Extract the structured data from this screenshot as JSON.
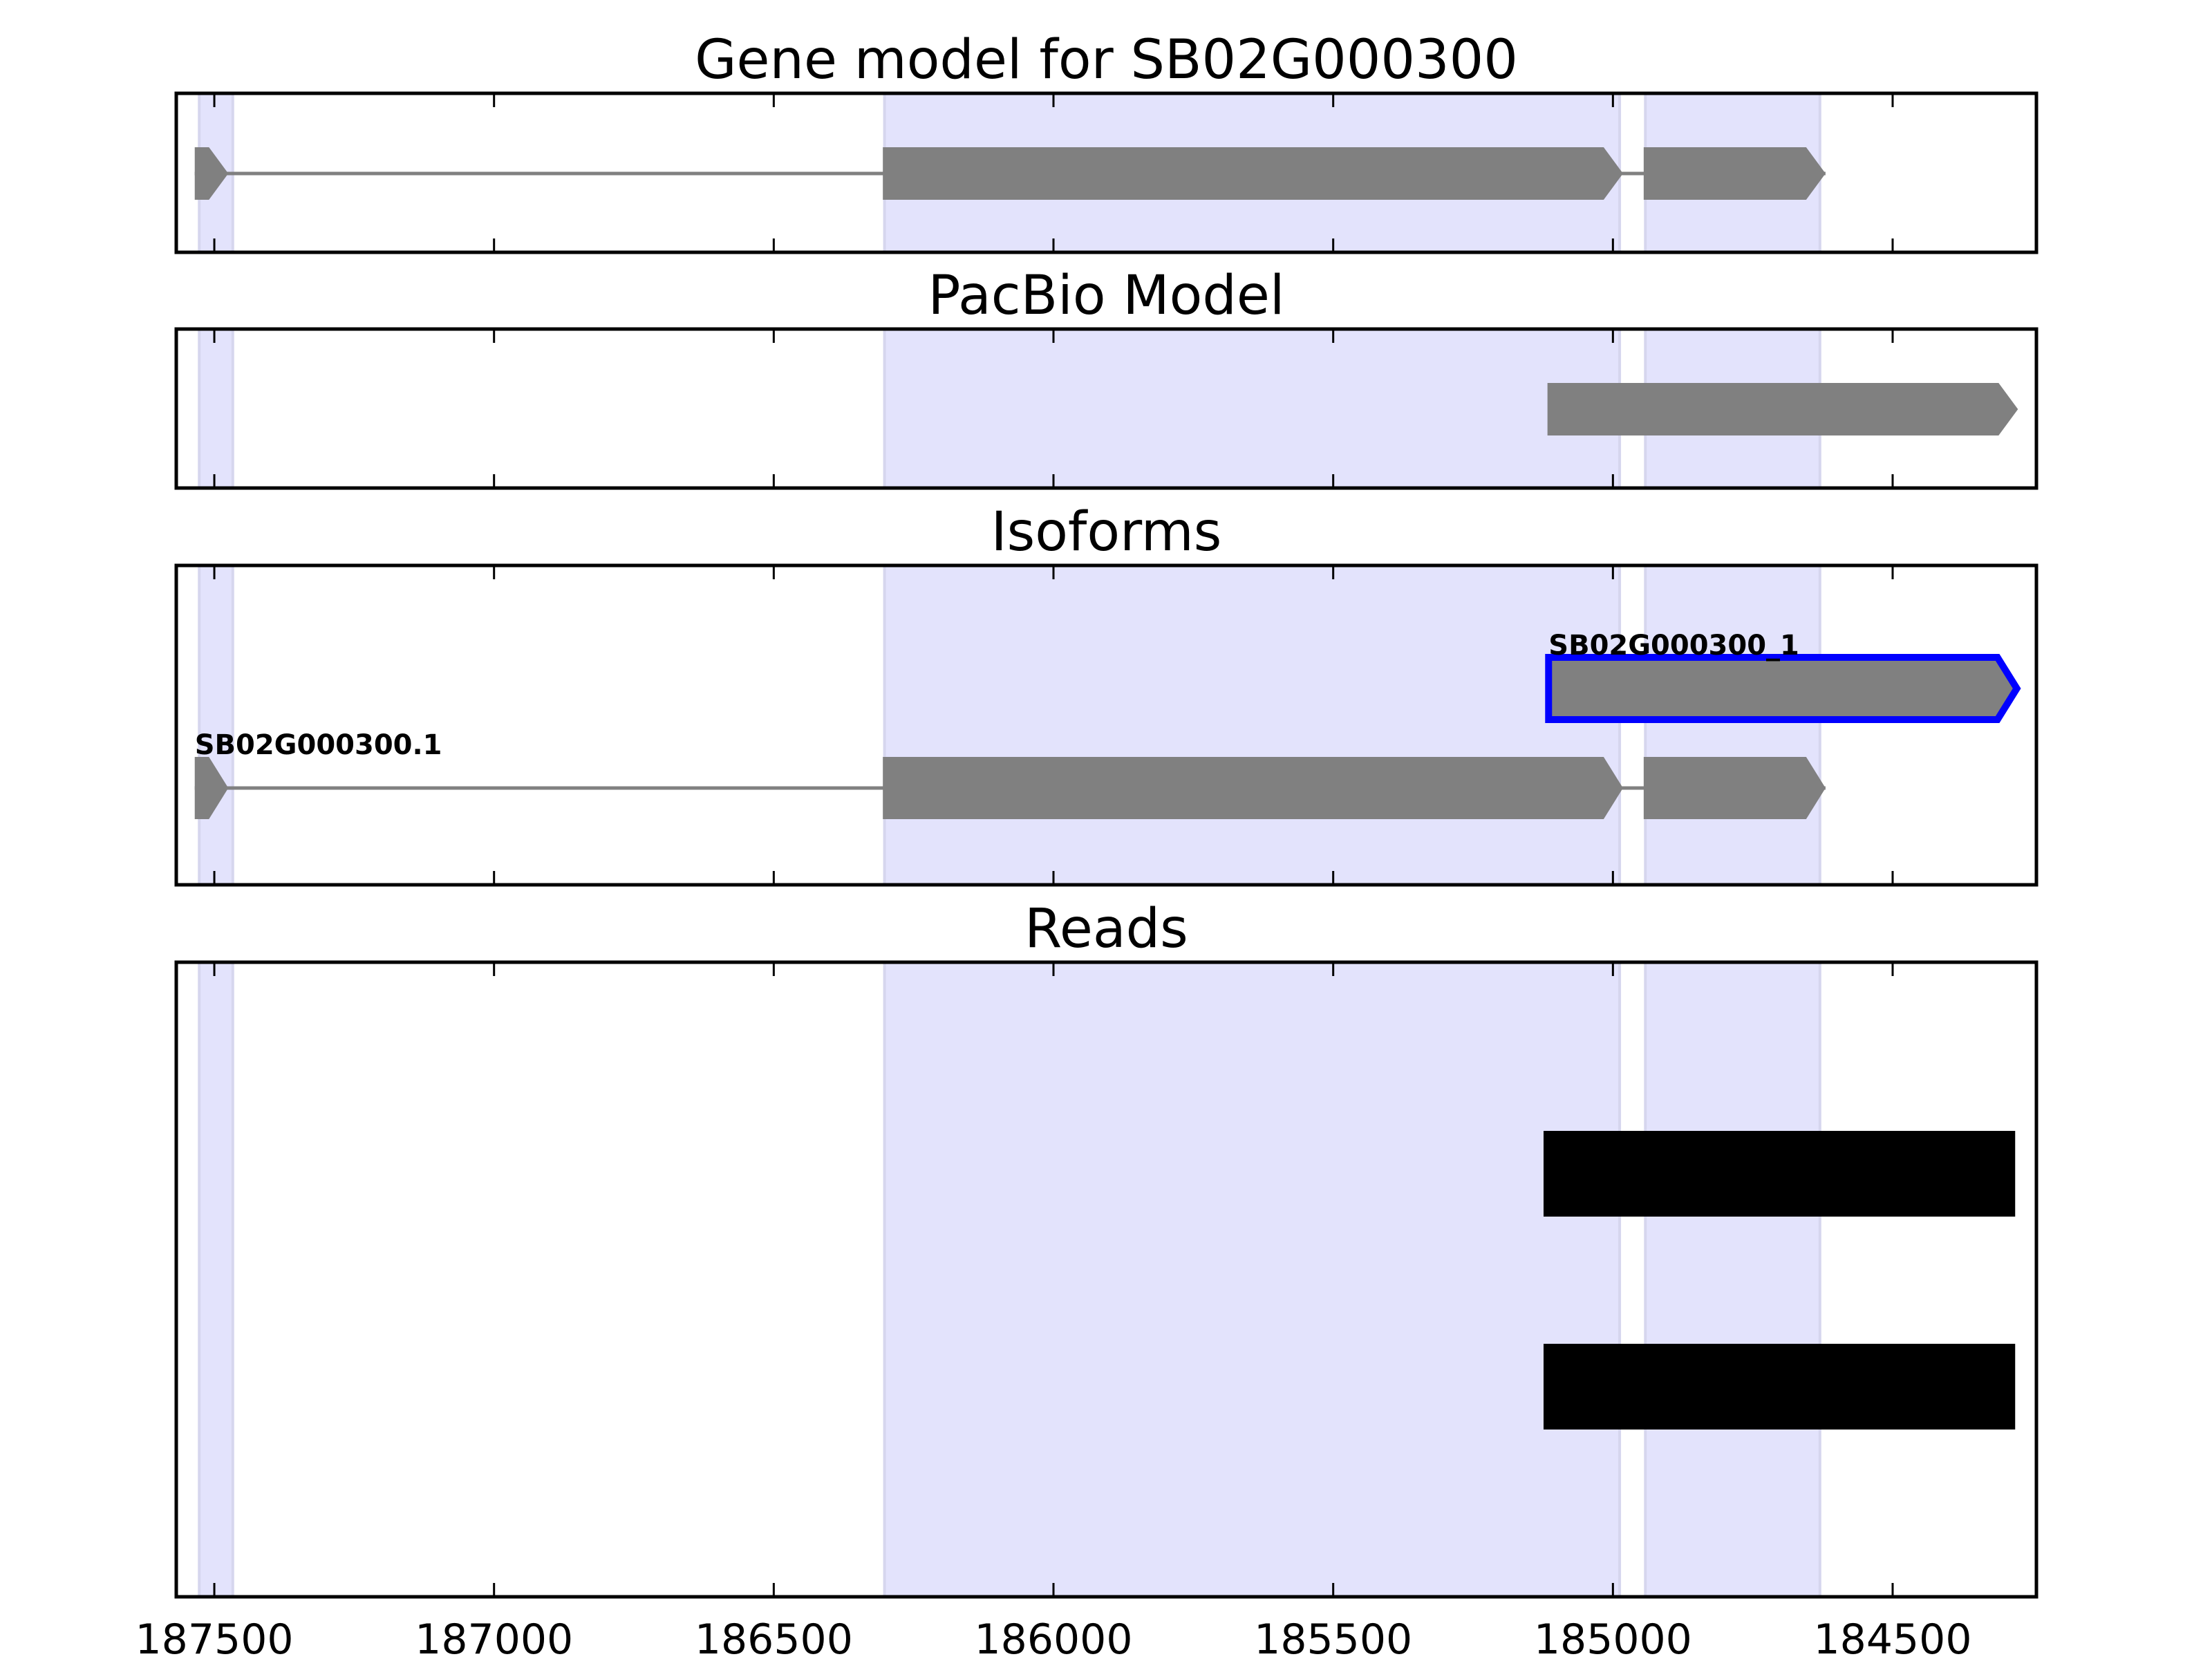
{
  "chart_data": {
    "type": "gene-track",
    "xlim": [
      187568,
      184243
    ],
    "x_axis_reversed": true,
    "xticks": [
      187500,
      187000,
      186500,
      186000,
      185500,
      185000,
      184500
    ],
    "xtick_labels": [
      "187500",
      "187000",
      "186500",
      "186000",
      "185500",
      "185000",
      "184500"
    ],
    "shade_color": "#e3e3fc",
    "feature_color": "#808080",
    "highlight_color": "#0000ff",
    "exon_regions": [
      [
        187527,
        187467
      ],
      [
        186302,
        184988
      ],
      [
        184942,
        184630
      ]
    ],
    "panels": [
      {
        "title": "Gene model for SB02G000300",
        "features": [
          {
            "label": "",
            "exons": [
              [
                187535,
                187475
              ],
              [
                186305,
                184982
              ],
              [
                184945,
                184620
              ]
            ],
            "strand": "-"
          }
        ]
      },
      {
        "title": "PacBio Model",
        "features": [
          {
            "label": "",
            "exons": [
              [
                185117,
                184276
              ]
            ],
            "strand": "-"
          }
        ]
      },
      {
        "title": "Isoforms",
        "features": [
          {
            "label": "SB02G000300_1",
            "exons": [
              [
                185115,
                184278
              ]
            ],
            "strand": "-",
            "highlight": true
          },
          {
            "label": "SB02G000300.1",
            "exons": [
              [
                187535,
                187475
              ],
              [
                186305,
                184982
              ],
              [
                184945,
                184620
              ]
            ],
            "strand": "-"
          }
        ]
      },
      {
        "title": "Reads",
        "features": [
          {
            "label": "",
            "exons": [
              [
                185124,
                184281
              ]
            ],
            "strand": "-",
            "read": true
          },
          {
            "label": "",
            "exons": [
              [
                185124,
                184281
              ]
            ],
            "strand": "-",
            "read": true
          }
        ]
      }
    ]
  }
}
